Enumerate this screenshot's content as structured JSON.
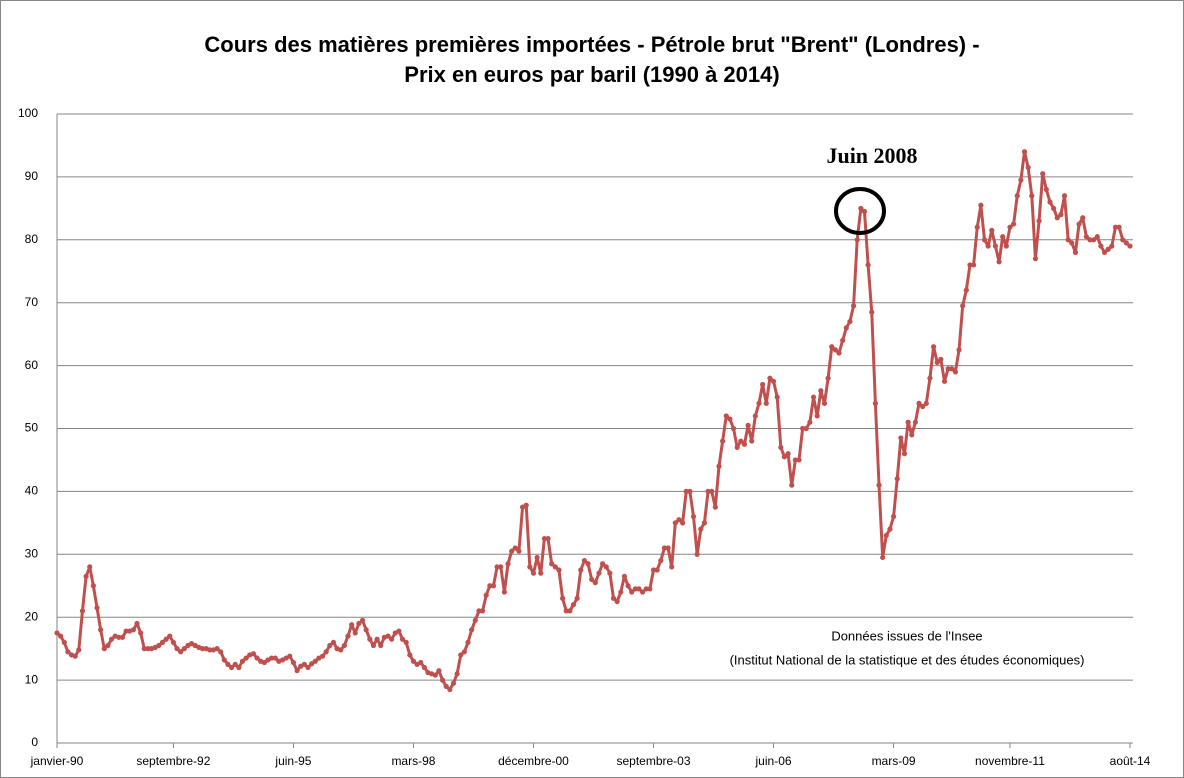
{
  "chart_data": {
    "type": "line",
    "title": [
      "Cours des matières premières importées - Pétrole brut \"Brent\" (Londres) -",
      "Prix en euros par baril (1990 à 2014)"
    ],
    "annotations": [
      "Juin 2008",
      "Données issues de l'Insee",
      "(Institut National de la statistique et des études économiques)"
    ],
    "color": "#c0504d",
    "grid": true,
    "markers": true,
    "ylim": [
      0,
      100
    ],
    "yticks": [
      0,
      10,
      20,
      30,
      40,
      50,
      60,
      70,
      80,
      90,
      100
    ],
    "categories": [
      "janvier-90",
      null,
      null,
      null,
      null,
      null,
      null,
      null,
      null,
      null,
      null,
      null,
      null,
      null,
      null,
      null,
      null,
      null,
      null,
      null,
      null,
      null,
      null,
      null,
      null,
      null,
      null,
      null,
      null,
      null,
      null,
      null,
      "septembre-92",
      null,
      null,
      null,
      null,
      null,
      null,
      null,
      null,
      null,
      null,
      null,
      null,
      null,
      null,
      null,
      null,
      null,
      null,
      null,
      null,
      null,
      null,
      null,
      null,
      null,
      null,
      null,
      null,
      null,
      null,
      null,
      null,
      "juin-95",
      null,
      null,
      null,
      null,
      null,
      null,
      null,
      null,
      null,
      null,
      null,
      null,
      null,
      null,
      null,
      null,
      null,
      null,
      null,
      null,
      null,
      null,
      null,
      null,
      null,
      null,
      null,
      null,
      null,
      null,
      null,
      null,
      "mars-98",
      null,
      null,
      null,
      null,
      null,
      null,
      null,
      null,
      null,
      null,
      null,
      null,
      null,
      null,
      null,
      null,
      null,
      null,
      null,
      null,
      null,
      null,
      null,
      null,
      null,
      null,
      null,
      null,
      null,
      null,
      null,
      null,
      "décembre-00",
      null,
      null,
      null,
      null,
      null,
      null,
      null,
      null,
      null,
      null,
      null,
      null,
      null,
      null,
      null,
      null,
      null,
      null,
      null,
      null,
      null,
      null,
      null,
      null,
      null,
      null,
      null,
      null,
      null,
      null,
      null,
      null,
      "septembre-03",
      null,
      null,
      null,
      null,
      null,
      null,
      null,
      null,
      null,
      null,
      null,
      null,
      null,
      null,
      null,
      null,
      null,
      null,
      null,
      null,
      null,
      null,
      null,
      null,
      null,
      null,
      null,
      null,
      null,
      null,
      null,
      null,
      "juin-06",
      null,
      null,
      null,
      null,
      null,
      null,
      null,
      null,
      null,
      null,
      null,
      null,
      null,
      null,
      null,
      null,
      null,
      null,
      null,
      null,
      null,
      null,
      null,
      null,
      null,
      null,
      null,
      null,
      null,
      null,
      null,
      null,
      "mars-09",
      null,
      null,
      null,
      null,
      null,
      null,
      null,
      null,
      null,
      null,
      null,
      null,
      null,
      null,
      null,
      null,
      null,
      null,
      null,
      null,
      null,
      null,
      null,
      null,
      null,
      null,
      null,
      null,
      null,
      null,
      null,
      "novembre-11",
      null,
      null,
      null,
      null,
      null,
      null,
      null,
      null,
      null,
      null,
      null,
      null,
      null,
      null,
      null,
      null,
      null,
      null,
      null,
      null,
      null,
      null,
      null,
      null,
      null,
      null,
      null,
      null,
      null,
      null,
      null,
      null,
      "août-14"
    ],
    "values": [
      17.5,
      17,
      16,
      14.5,
      14,
      13.8,
      14.8,
      21,
      26.5,
      28,
      25,
      21.5,
      18,
      15,
      15.5,
      16.5,
      17,
      16.8,
      16.8,
      17.8,
      17.8,
      18,
      19,
      17.5,
      15,
      15,
      15,
      15.2,
      15.5,
      16,
      16.5,
      17,
      16,
      15,
      14.5,
      15,
      15.5,
      15.8,
      15.5,
      15.2,
      15,
      15,
      14.8,
      14.8,
      15,
      14.5,
      13.2,
      12.5,
      12,
      12.5,
      12,
      13,
      13.5,
      14,
      14.2,
      13.5,
      13,
      12.8,
      13.2,
      13.5,
      13.5,
      13,
      13.2,
      13.5,
      13.8,
      12.8,
      11.5,
      12.2,
      12.5,
      12,
      12.6,
      13,
      13.5,
      13.8,
      14.5,
      15.5,
      16,
      15,
      14.8,
      15.5,
      17,
      18.8,
      17.5,
      19,
      19.5,
      18,
      16.5,
      15.5,
      16.5,
      15.5,
      16.8,
      17,
      16.5,
      17.5,
      17.8,
      16.5,
      16,
      14,
      13,
      12.5,
      12.8,
      12,
      11.2,
      11,
      10.8,
      11.5,
      10,
      9,
      8.5,
      9.5,
      11,
      14,
      14.5,
      16,
      18,
      19.5,
      21,
      21,
      23.5,
      25,
      25,
      28,
      28,
      24,
      28.5,
      30.5,
      31,
      30.5,
      37.5,
      37.8,
      28,
      27,
      29.5,
      27,
      32.5,
      32.5,
      28.5,
      28,
      27.5,
      23,
      21,
      21,
      22,
      23,
      27.5,
      29,
      28.5,
      26,
      25.5,
      27,
      28.5,
      28,
      27,
      23,
      22.5,
      24,
      26.5,
      25,
      24,
      24.5,
      24.5,
      24,
      24.5,
      24.5,
      27.5,
      27.5,
      29,
      31,
      31,
      28,
      35,
      35.5,
      35,
      40,
      40,
      36,
      30,
      34,
      35,
      40,
      40,
      37.5,
      44,
      48,
      52,
      51.5,
      50,
      47,
      48,
      47.5,
      50.5,
      48,
      52,
      54,
      57,
      54,
      58,
      57.5,
      55,
      47,
      45.5,
      46,
      41,
      45,
      45,
      50,
      50,
      51,
      55,
      52,
      56,
      54,
      58,
      63,
      62.5,
      62,
      64,
      66,
      67,
      69.5,
      80,
      85,
      84.5,
      76,
      68.5,
      54,
      41,
      29.5,
      33,
      34,
      36,
      42,
      48.5,
      46,
      51,
      49,
      51,
      54,
      53.5,
      54,
      58,
      63,
      60.5,
      61,
      57.5,
      59.5,
      59.5,
      59,
      62.5,
      69.5,
      72,
      76,
      76,
      82,
      85.5,
      80,
      79,
      81.5,
      79,
      76.5,
      80.5,
      79,
      82,
      82.5,
      87,
      89.5,
      94,
      91.5,
      87,
      77,
      83,
      90.5,
      88,
      86,
      85,
      83.5,
      84,
      87,
      80,
      79.5,
      78,
      82.5,
      83.5,
      80.5,
      80,
      80,
      80.5,
      79,
      78,
      78.5,
      79,
      82,
      82,
      80,
      79.5,
      79
    ]
  }
}
